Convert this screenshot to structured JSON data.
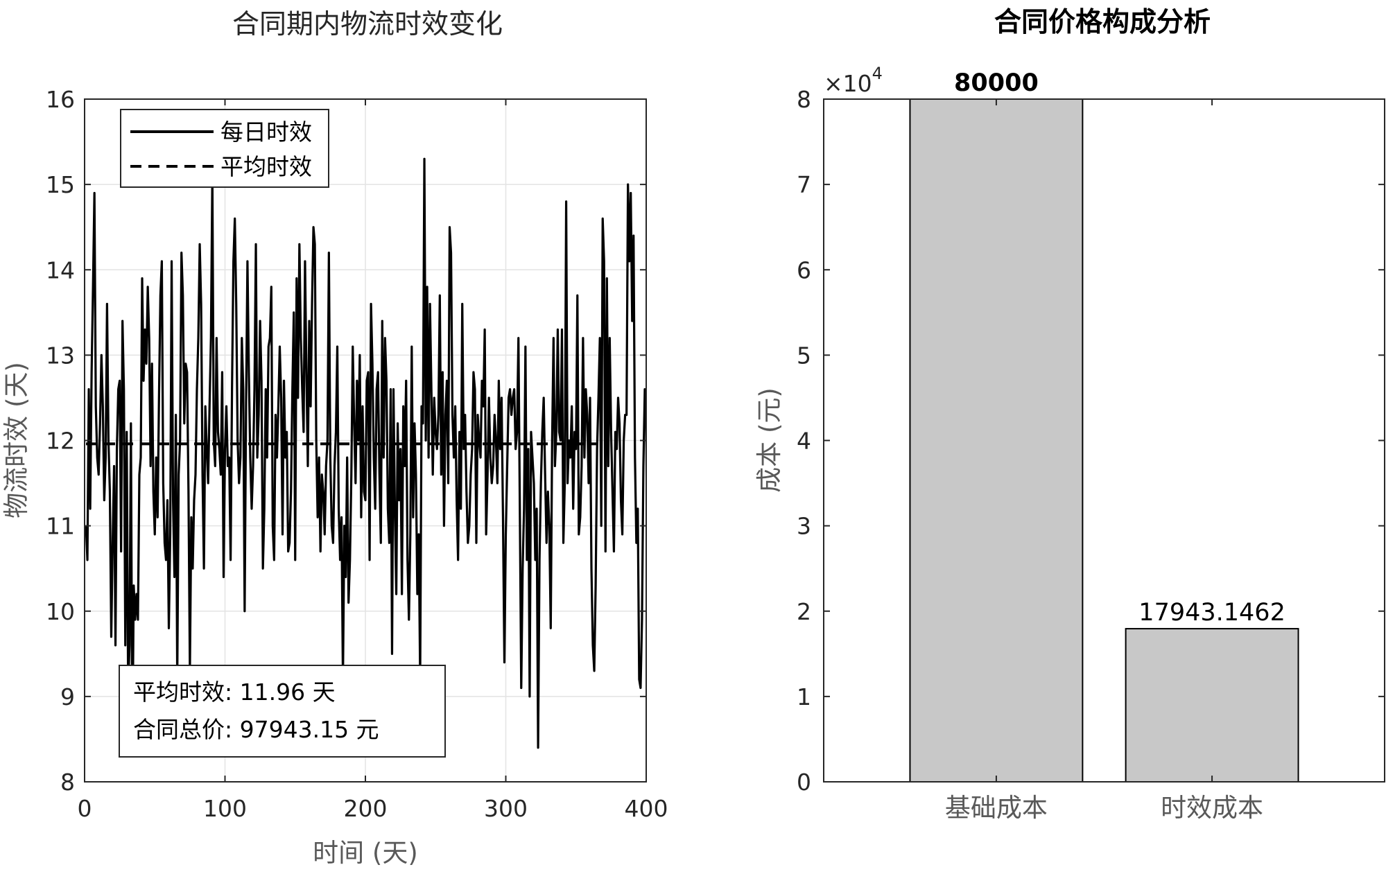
{
  "chart_data": [
    {
      "type": "line",
      "title": "合同期内物流时效变化",
      "xlabel": "时间 (天)",
      "ylabel": "物流时效 (天)",
      "xlim": [
        0,
        400
      ],
      "ylim": [
        8,
        16
      ],
      "xticks": [
        0,
        100,
        200,
        300,
        400
      ],
      "yticks": [
        8,
        9,
        10,
        11,
        12,
        13,
        14,
        15,
        16
      ],
      "grid": true,
      "legend_position": "top-left",
      "series": [
        {
          "name": "每日时效",
          "style": "solid",
          "x_start": 1,
          "x_step": 1,
          "values": [
            11.0,
            10.6,
            12.6,
            11.2,
            12.8,
            13.8,
            14.9,
            12.4,
            11.8,
            11.6,
            12.2,
            13.0,
            12.4,
            11.3,
            11.8,
            13.6,
            12.0,
            11.4,
            9.7,
            10.8,
            11.7,
            9.6,
            11.9,
            12.6,
            12.7,
            10.7,
            13.4,
            12.6,
            9.6,
            12.1,
            9.1,
            9.6,
            12.2,
            8.3,
            10.3,
            9.9,
            10.2,
            9.9,
            11.6,
            11.8,
            13.9,
            12.7,
            13.3,
            12.9,
            13.8,
            13.2,
            11.7,
            12.9,
            11.4,
            10.9,
            11.8,
            11.1,
            12.5,
            13.7,
            14.1,
            11.5,
            10.8,
            10.6,
            11.3,
            9.8,
            10.9,
            14.1,
            11.3,
            10.4,
            12.3,
            9.2,
            11.6,
            12.0,
            14.2,
            13.7,
            12.2,
            12.9,
            12.8,
            11.4,
            9.3,
            11.1,
            10.5,
            11.3,
            11.6,
            12.6,
            13.2,
            14.3,
            13.6,
            11.6,
            10.5,
            12.4,
            11.9,
            11.5,
            12.4,
            13.2,
            15.1,
            12.0,
            11.7,
            13.2,
            12.1,
            11.9,
            11.6,
            12.8,
            10.4,
            11.9,
            12.4,
            11.7,
            11.8,
            10.6,
            12.6,
            14.1,
            14.6,
            13.6,
            12.0,
            11.5,
            11.8,
            13.2,
            12.6,
            10.0,
            12.4,
            14.1,
            12.8,
            11.8,
            11.2,
            11.7,
            12.6,
            14.3,
            11.8,
            12.3,
            13.4,
            12.7,
            10.5,
            11.2,
            12.6,
            11.8,
            13.1,
            13.2,
            13.8,
            11.0,
            10.6,
            12.3,
            11.8,
            12.4,
            13.1,
            12.5,
            10.9,
            12.7,
            11.8,
            12.1,
            10.7,
            10.8,
            11.4,
            12.6,
            13.5,
            10.6,
            13.9,
            12.5,
            14.3,
            13.2,
            12.6,
            12.1,
            14.1,
            12.8,
            11.7,
            13.4,
            12.4,
            13.6,
            14.5,
            14.3,
            12.0,
            11.1,
            11.8,
            10.7,
            11.6,
            11.4,
            10.9,
            11.7,
            12.0,
            14.2,
            11.8,
            11.0,
            10.8,
            11.7,
            12.1,
            13.1,
            11.2,
            10.6,
            11.1,
            9.2,
            11.0,
            10.4,
            11.8,
            10.1,
            10.6,
            11.6,
            13.1,
            12.2,
            11.5,
            12.7,
            12.0,
            13.0,
            11.1,
            12.4,
            11.4,
            11.3,
            12.7,
            12.8,
            10.6,
            13.6,
            12.9,
            11.8,
            11.2,
            12.6,
            12.8,
            11.6,
            10.8,
            13.4,
            11.8,
            13.2,
            12.7,
            11.2,
            10.8,
            12.6,
            9.5,
            12.6,
            11.2,
            10.2,
            12.2,
            11.3,
            11.9,
            10.2,
            12.4,
            11.7,
            12.7,
            10.6,
            9.9,
            10.9,
            13.1,
            11.1,
            12.2,
            11.6,
            10.2,
            10.9,
            9.2,
            12.4,
            12.2,
            15.3,
            12.0,
            13.8,
            11.8,
            13.6,
            12.6,
            11.6,
            12.5,
            12.1,
            11.9,
            12.3,
            13.7,
            11.6,
            12.8,
            11.0,
            12.3,
            12.7,
            11.5,
            14.5,
            14.2,
            12.3,
            11.8,
            12.4,
            11.3,
            10.6,
            12.1,
            11.2,
            13.6,
            11.9,
            12.3,
            11.4,
            10.8,
            11.0,
            11.6,
            11.9,
            12.8,
            12.6,
            10.8,
            12.3,
            12.0,
            11.8,
            12.7,
            12.4,
            13.3,
            10.9,
            11.6,
            12.5,
            11.8,
            11.5,
            11.7,
            12.3,
            12.0,
            11.5,
            12.7,
            11.9,
            12.5,
            11.1,
            9.4,
            10.9,
            11.7,
            12.5,
            12.6,
            12.3,
            12.5,
            12.6,
            11.9,
            12.1,
            13.2,
            11.2,
            9.1,
            10.5,
            11.2,
            13.1,
            10.6,
            11.9,
            9.0,
            12.1,
            11.8,
            11.5,
            10.6,
            11.2,
            8.4,
            10.6,
            11.5,
            12.1,
            12.5,
            11.6,
            10.8,
            11.4,
            11.0,
            9.8,
            12.0,
            13.2,
            11.7,
            12.1,
            13.3,
            12.1,
            12.0,
            13.3,
            10.8,
            11.5,
            14.8,
            11.5,
            12.0,
            11.8,
            12.4,
            11.2,
            12.1,
            11.9,
            13.7,
            10.9,
            11.1,
            11.7,
            13.2,
            11.8,
            12.6,
            12.3,
            11.5,
            12.5,
            10.5,
            9.6,
            9.3,
            10.3,
            11.9,
            12.5,
            13.2,
            11.0,
            14.6,
            14.1,
            10.7,
            13.9,
            11.7,
            13.2,
            12.1,
            11.4,
            10.7,
            12.1,
            11.9,
            12.5,
            12.2,
            11.3,
            10.9,
            12.0,
            12.3,
            12.3,
            15.0,
            14.1,
            14.9,
            13.4,
            14.4,
            11.8,
            10.8,
            11.2,
            9.2,
            9.1,
            9.9,
            11.7,
            12.6,
            12.4,
            9.5,
            11.4,
            12.9,
            12.1,
            12.2
          ]
        },
        {
          "name": "平均时效",
          "style": "dashed",
          "x": [
            1,
            365
          ],
          "values": [
            11.96,
            11.96
          ]
        }
      ],
      "annotation": {
        "line1": "平均时效: 11.96 天",
        "line2": "合同总价: 97943.15 元"
      }
    },
    {
      "type": "bar",
      "title": "合同价格构成分析",
      "xlabel": "",
      "ylabel": "成本 (元)",
      "ylim": [
        0,
        80000
      ],
      "yticks": [
        0,
        1,
        2,
        3,
        4,
        5,
        6,
        7,
        8
      ],
      "exponent_label": "×10",
      "exponent_power": "4",
      "grid": false,
      "categories": [
        "基础成本",
        "时效成本"
      ],
      "values": [
        80000,
        17943.1462
      ],
      "value_labels": [
        "80000",
        "17943.1462"
      ],
      "bar_color": "#c8c8c8"
    }
  ]
}
